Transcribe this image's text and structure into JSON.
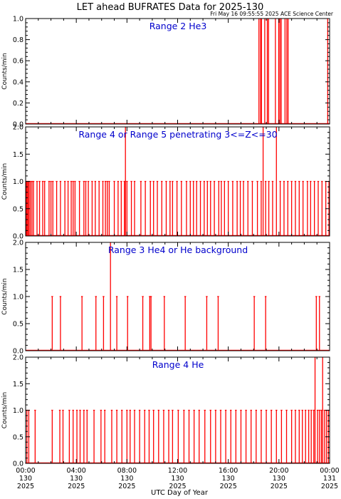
{
  "header": {
    "title": "LET ahead BUFRATES Data for 2025-130",
    "stamp": "Fri May 16 09:55:55 2025 ACE Science Center"
  },
  "x_axis": {
    "label": "UTC Day of Year",
    "ticks": [
      {
        "hour": 0,
        "time": "00:00",
        "doy": "130",
        "year": "2025"
      },
      {
        "hour": 4,
        "time": "04:00",
        "doy": "130",
        "year": "2025"
      },
      {
        "hour": 8,
        "time": "08:00",
        "doy": "130",
        "year": "2025"
      },
      {
        "hour": 12,
        "time": "12:00",
        "doy": "130",
        "year": "2025"
      },
      {
        "hour": 16,
        "time": "16:00",
        "doy": "130",
        "year": "2025"
      },
      {
        "hour": 20,
        "time": "20:00",
        "doy": "130",
        "year": "2025"
      },
      {
        "hour": 24,
        "time": "00:00",
        "doy": "131",
        "year": "2025"
      }
    ]
  },
  "colors": {
    "data": "#ff0000",
    "label": "#0000cc",
    "axis": "#000000"
  },
  "chart_data": [
    {
      "type": "bar",
      "title": "Range 2 He3",
      "ylabel": "Counts/min",
      "xlim": [
        0,
        24
      ],
      "ylim": [
        0,
        1.0
      ],
      "yticks": [
        "0.0",
        "0.2",
        "0.4",
        "0.6",
        "0.8",
        "1.0"
      ],
      "grid": false,
      "spikes": [
        {
          "t": 18.42,
          "v": 1
        },
        {
          "t": 18.55,
          "v": 1
        },
        {
          "t": 18.62,
          "v": 1
        },
        {
          "t": 18.88,
          "v": 1
        },
        {
          "t": 19.08,
          "v": 1
        },
        {
          "t": 19.18,
          "v": 1
        },
        {
          "t": 19.72,
          "v": 1
        },
        {
          "t": 19.98,
          "v": 1
        },
        {
          "t": 20.08,
          "v": 1
        },
        {
          "t": 20.18,
          "v": 1
        },
        {
          "t": 20.48,
          "v": 1
        },
        {
          "t": 20.62,
          "v": 1
        },
        {
          "t": 20.72,
          "v": 1
        },
        {
          "t": 23.85,
          "v": 1
        }
      ]
    },
    {
      "type": "bar",
      "title": "Range 4 or Range 5 penetrating 3<=Z<=30",
      "ylabel": "Counts/min",
      "xlim": [
        0,
        24
      ],
      "ylim": [
        0,
        2.0
      ],
      "yticks": [
        "0.0",
        "0.5",
        "1.0",
        "1.5",
        "2.0"
      ],
      "grid": false,
      "spikes": [
        {
          "t": 0.05,
          "v": 1
        },
        {
          "t": 0.12,
          "v": 1
        },
        {
          "t": 0.2,
          "v": 1
        },
        {
          "t": 0.28,
          "v": 1
        },
        {
          "t": 0.38,
          "v": 1
        },
        {
          "t": 0.5,
          "v": 1
        },
        {
          "t": 0.62,
          "v": 1
        },
        {
          "t": 0.9,
          "v": 1
        },
        {
          "t": 1.1,
          "v": 1
        },
        {
          "t": 1.35,
          "v": 1
        },
        {
          "t": 1.5,
          "v": 1
        },
        {
          "t": 1.85,
          "v": 1
        },
        {
          "t": 2.0,
          "v": 1
        },
        {
          "t": 2.15,
          "v": 1
        },
        {
          "t": 2.45,
          "v": 1
        },
        {
          "t": 2.75,
          "v": 1
        },
        {
          "t": 3.1,
          "v": 1
        },
        {
          "t": 3.35,
          "v": 1
        },
        {
          "t": 3.6,
          "v": 1
        },
        {
          "t": 3.75,
          "v": 1
        },
        {
          "t": 3.9,
          "v": 1
        },
        {
          "t": 4.25,
          "v": 1
        },
        {
          "t": 4.6,
          "v": 1
        },
        {
          "t": 4.75,
          "v": 1
        },
        {
          "t": 4.95,
          "v": 1
        },
        {
          "t": 5.25,
          "v": 1
        },
        {
          "t": 5.5,
          "v": 1
        },
        {
          "t": 5.8,
          "v": 1
        },
        {
          "t": 6.1,
          "v": 1
        },
        {
          "t": 6.3,
          "v": 1
        },
        {
          "t": 6.45,
          "v": 1
        },
        {
          "t": 6.6,
          "v": 1
        },
        {
          "t": 7.0,
          "v": 1
        },
        {
          "t": 7.3,
          "v": 1
        },
        {
          "t": 7.55,
          "v": 1
        },
        {
          "t": 7.8,
          "v": 1
        },
        {
          "t": 7.88,
          "v": 2
        },
        {
          "t": 8.0,
          "v": 1
        },
        {
          "t": 8.35,
          "v": 1
        },
        {
          "t": 8.6,
          "v": 1
        },
        {
          "t": 9.1,
          "v": 1
        },
        {
          "t": 9.45,
          "v": 1
        },
        {
          "t": 9.85,
          "v": 1
        },
        {
          "t": 10.1,
          "v": 1
        },
        {
          "t": 10.4,
          "v": 1
        },
        {
          "t": 10.75,
          "v": 1
        },
        {
          "t": 11.1,
          "v": 1
        },
        {
          "t": 11.4,
          "v": 1
        },
        {
          "t": 11.6,
          "v": 1
        },
        {
          "t": 11.95,
          "v": 1
        },
        {
          "t": 12.3,
          "v": 1
        },
        {
          "t": 12.7,
          "v": 1
        },
        {
          "t": 13.0,
          "v": 1
        },
        {
          "t": 13.25,
          "v": 1
        },
        {
          "t": 13.5,
          "v": 1
        },
        {
          "t": 13.8,
          "v": 1
        },
        {
          "t": 14.1,
          "v": 1
        },
        {
          "t": 14.35,
          "v": 1
        },
        {
          "t": 14.6,
          "v": 1
        },
        {
          "t": 14.9,
          "v": 1
        },
        {
          "t": 15.25,
          "v": 1
        },
        {
          "t": 15.45,
          "v": 1
        },
        {
          "t": 15.7,
          "v": 1
        },
        {
          "t": 16.0,
          "v": 1
        },
        {
          "t": 16.35,
          "v": 1
        },
        {
          "t": 16.7,
          "v": 1
        },
        {
          "t": 16.95,
          "v": 1
        },
        {
          "t": 17.2,
          "v": 1
        },
        {
          "t": 17.55,
          "v": 1
        },
        {
          "t": 17.9,
          "v": 1
        },
        {
          "t": 18.3,
          "v": 1
        },
        {
          "t": 18.6,
          "v": 1
        },
        {
          "t": 18.75,
          "v": 2
        },
        {
          "t": 18.95,
          "v": 1
        },
        {
          "t": 19.2,
          "v": 1
        },
        {
          "t": 19.5,
          "v": 1
        },
        {
          "t": 19.8,
          "v": 2
        },
        {
          "t": 20.1,
          "v": 1
        },
        {
          "t": 20.4,
          "v": 1
        },
        {
          "t": 20.7,
          "v": 1
        },
        {
          "t": 21.0,
          "v": 1
        },
        {
          "t": 21.3,
          "v": 1
        },
        {
          "t": 21.6,
          "v": 1
        },
        {
          "t": 21.9,
          "v": 1
        },
        {
          "t": 22.25,
          "v": 1
        },
        {
          "t": 22.5,
          "v": 1
        },
        {
          "t": 22.8,
          "v": 1
        },
        {
          "t": 23.1,
          "v": 1
        },
        {
          "t": 23.4,
          "v": 1
        },
        {
          "t": 23.7,
          "v": 1
        },
        {
          "t": 23.95,
          "v": 1
        }
      ]
    },
    {
      "type": "bar",
      "title": "Range 3 He4 or He background",
      "ylabel": "Counts/min",
      "xlim": [
        0,
        24
      ],
      "ylim": [
        0,
        2.0
      ],
      "yticks": [
        "0.0",
        "0.5",
        "1.0",
        "1.5",
        "2.0"
      ],
      "grid": false,
      "spikes": [
        {
          "t": 2.1,
          "v": 1
        },
        {
          "t": 2.75,
          "v": 1
        },
        {
          "t": 4.45,
          "v": 1
        },
        {
          "t": 5.55,
          "v": 1
        },
        {
          "t": 6.15,
          "v": 1
        },
        {
          "t": 6.7,
          "v": 2
        },
        {
          "t": 7.2,
          "v": 1
        },
        {
          "t": 8.05,
          "v": 1
        },
        {
          "t": 9.25,
          "v": 1
        },
        {
          "t": 9.8,
          "v": 1
        },
        {
          "t": 9.9,
          "v": 1
        },
        {
          "t": 10.95,
          "v": 1
        },
        {
          "t": 12.6,
          "v": 1
        },
        {
          "t": 14.3,
          "v": 1
        },
        {
          "t": 15.2,
          "v": 1
        },
        {
          "t": 18.05,
          "v": 1
        },
        {
          "t": 18.95,
          "v": 1
        },
        {
          "t": 22.95,
          "v": 1
        },
        {
          "t": 23.2,
          "v": 1
        }
      ]
    },
    {
      "type": "bar",
      "title": "Range 4 He",
      "ylabel": "Counts/min",
      "xlim": [
        0,
        24
      ],
      "ylim": [
        0,
        2.0
      ],
      "yticks": [
        "0.0",
        "0.5",
        "1.0",
        "1.5",
        "2.0"
      ],
      "grid": false,
      "spikes": [
        {
          "t": 0.1,
          "v": 1
        },
        {
          "t": 0.25,
          "v": 1
        },
        {
          "t": 0.75,
          "v": 1
        },
        {
          "t": 2.1,
          "v": 1
        },
        {
          "t": 2.7,
          "v": 1
        },
        {
          "t": 2.95,
          "v": 1
        },
        {
          "t": 3.45,
          "v": 1
        },
        {
          "t": 3.75,
          "v": 1
        },
        {
          "t": 4.05,
          "v": 1
        },
        {
          "t": 4.3,
          "v": 1
        },
        {
          "t": 4.6,
          "v": 1
        },
        {
          "t": 4.85,
          "v": 1
        },
        {
          "t": 5.4,
          "v": 1
        },
        {
          "t": 5.95,
          "v": 1
        },
        {
          "t": 6.25,
          "v": 1
        },
        {
          "t": 6.8,
          "v": 1
        },
        {
          "t": 7.2,
          "v": 1
        },
        {
          "t": 7.6,
          "v": 1
        },
        {
          "t": 8.0,
          "v": 1
        },
        {
          "t": 8.25,
          "v": 1
        },
        {
          "t": 8.6,
          "v": 1
        },
        {
          "t": 9.0,
          "v": 1
        },
        {
          "t": 9.4,
          "v": 1
        },
        {
          "t": 9.75,
          "v": 1
        },
        {
          "t": 10.1,
          "v": 1
        },
        {
          "t": 10.5,
          "v": 1
        },
        {
          "t": 10.9,
          "v": 1
        },
        {
          "t": 11.3,
          "v": 1
        },
        {
          "t": 11.6,
          "v": 1
        },
        {
          "t": 12.05,
          "v": 1
        },
        {
          "t": 12.5,
          "v": 1
        },
        {
          "t": 12.9,
          "v": 1
        },
        {
          "t": 13.3,
          "v": 1
        },
        {
          "t": 13.7,
          "v": 1
        },
        {
          "t": 14.15,
          "v": 1
        },
        {
          "t": 14.6,
          "v": 1
        },
        {
          "t": 15.0,
          "v": 1
        },
        {
          "t": 15.4,
          "v": 1
        },
        {
          "t": 15.8,
          "v": 1
        },
        {
          "t": 16.2,
          "v": 1
        },
        {
          "t": 16.6,
          "v": 1
        },
        {
          "t": 17.0,
          "v": 1
        },
        {
          "t": 17.4,
          "v": 1
        },
        {
          "t": 17.8,
          "v": 1
        },
        {
          "t": 18.2,
          "v": 1
        },
        {
          "t": 18.6,
          "v": 1
        },
        {
          "t": 19.0,
          "v": 1
        },
        {
          "t": 19.4,
          "v": 1
        },
        {
          "t": 19.8,
          "v": 1
        },
        {
          "t": 20.2,
          "v": 1
        },
        {
          "t": 20.6,
          "v": 1
        },
        {
          "t": 21.0,
          "v": 1
        },
        {
          "t": 21.3,
          "v": 1
        },
        {
          "t": 21.6,
          "v": 1
        },
        {
          "t": 21.85,
          "v": 1
        },
        {
          "t": 22.1,
          "v": 1
        },
        {
          "t": 22.35,
          "v": 1
        },
        {
          "t": 22.55,
          "v": 1
        },
        {
          "t": 22.75,
          "v": 1
        },
        {
          "t": 22.85,
          "v": 2
        },
        {
          "t": 23.05,
          "v": 1
        },
        {
          "t": 23.2,
          "v": 1
        },
        {
          "t": 23.35,
          "v": 1
        },
        {
          "t": 23.45,
          "v": 2
        },
        {
          "t": 23.6,
          "v": 1
        },
        {
          "t": 23.75,
          "v": 1
        },
        {
          "t": 23.9,
          "v": 1
        }
      ]
    }
  ]
}
